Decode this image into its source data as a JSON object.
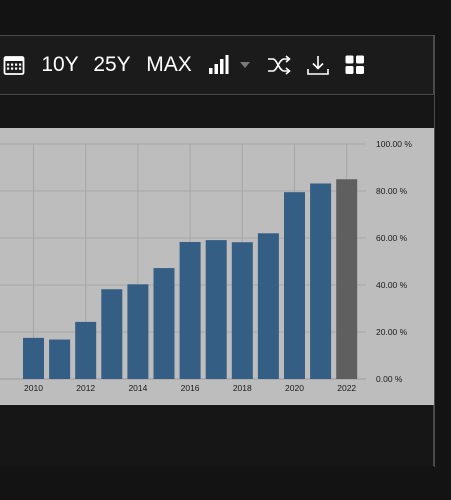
{
  "toolbar": {
    "buttons": [
      {
        "name": "calendar-button",
        "icon": "calendar-icon",
        "label": ""
      },
      {
        "name": "range-10y-button",
        "label": "10Y"
      },
      {
        "name": "range-25y-button",
        "label": "25Y"
      },
      {
        "name": "range-max-button",
        "label": "MAX"
      },
      {
        "name": "chart-type-button",
        "icon": "bar-chart-icon",
        "label": ""
      },
      {
        "name": "chart-type-dropdown",
        "icon": "caret-down-icon",
        "label": ""
      },
      {
        "name": "compare-button",
        "icon": "shuffle-icon",
        "label": ""
      },
      {
        "name": "download-button",
        "icon": "download-icon",
        "label": ""
      },
      {
        "name": "embed-button",
        "icon": "grid-icon",
        "label": ""
      }
    ]
  },
  "colors": {
    "bar": "#355e85",
    "bar_forecast": "#5f5f5f",
    "panel_bg": "#bdbdbd",
    "grid": "#a6a6a6",
    "axis_text": "#1a1a1a"
  },
  "chart_data": {
    "type": "bar",
    "categories": [
      "2010",
      "2011",
      "2012",
      "2013",
      "2014",
      "2015",
      "2016",
      "2017",
      "2018",
      "2019",
      "2020",
      "2021",
      "2022"
    ],
    "values": [
      17.5,
      16.8,
      24.3,
      38.2,
      40.3,
      47.2,
      58.3,
      59.1,
      58.2,
      62.0,
      79.5,
      83.2,
      85.0
    ],
    "forecast_index": 12,
    "x_tick_labels": [
      "2010",
      "2012",
      "2014",
      "2016",
      "2018",
      "2020",
      "2022"
    ],
    "y_tick_labels": [
      "0.00 %",
      "20.00 %",
      "40.00 %",
      "60.00 %",
      "80.00 %",
      "100.00 %"
    ],
    "y_ticks": [
      0,
      20,
      40,
      60,
      80,
      100
    ],
    "ylim": [
      0,
      100
    ],
    "grid": true,
    "y_axis_position": "right",
    "title": "",
    "xlabel": "",
    "ylabel": ""
  }
}
